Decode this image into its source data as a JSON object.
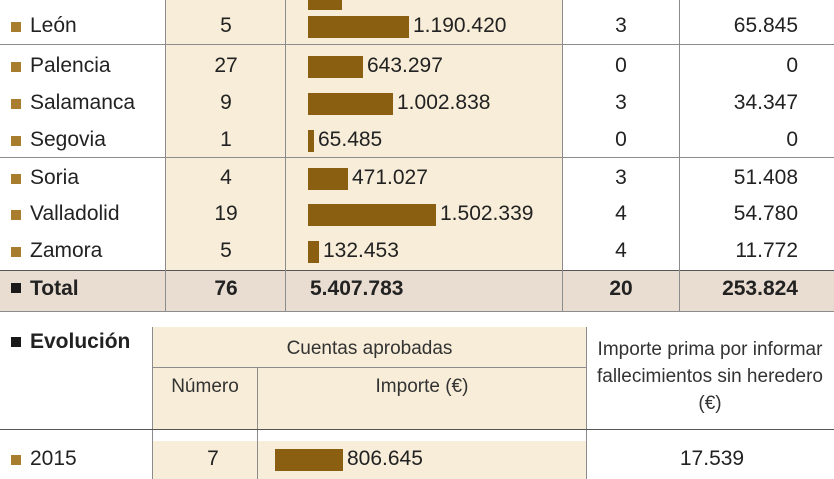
{
  "provinces": [
    {
      "name": "León",
      "numero": "5",
      "importe": "1.190.420",
      "importe_value": 1190420,
      "fallecidos": "3",
      "prima": "65.845"
    },
    {
      "name": "Palencia",
      "numero": "27",
      "importe": "643.297",
      "importe_value": 643297,
      "fallecidos": "0",
      "prima": "0"
    },
    {
      "name": "Salamanca",
      "numero": "9",
      "importe": "1.002.838",
      "importe_value": 1002838,
      "fallecidos": "3",
      "prima": "34.347"
    },
    {
      "name": "Segovia",
      "numero": "1",
      "importe": "65.485",
      "importe_value": 65485,
      "fallecidos": "0",
      "prima": "0"
    },
    {
      "name": "Soria",
      "numero": "4",
      "importe": "471.027",
      "importe_value": 471027,
      "fallecidos": "3",
      "prima": "51.408"
    },
    {
      "name": "Valladolid",
      "numero": "19",
      "importe": "1.502.339",
      "importe_value": 1502339,
      "fallecidos": "4",
      "prima": "54.780"
    },
    {
      "name": "Zamora",
      "numero": "5",
      "importe": "132.453",
      "importe_value": 132453,
      "fallecidos": "4",
      "prima": "11.772"
    }
  ],
  "total": {
    "label": "Total",
    "numero": "76",
    "importe": "5.407.783",
    "fallecidos": "20",
    "prima": "253.824"
  },
  "evolucion": {
    "title": "Evolución",
    "header_group": "Cuentas aprobadas",
    "col_numero": "Número",
    "col_importe": "Importe (€)",
    "col_prima": "Importe prima por informar fallecimientos sin heredero (€)",
    "rows": [
      {
        "year": "2015",
        "numero": "7",
        "importe": "806.645",
        "importe_value": 806645,
        "prima": "17.539"
      }
    ]
  },
  "colors": {
    "bar": "#8a5f12",
    "bullet": "#a87d2e",
    "band": "#f7edd8",
    "total_band": "#e8ddd0"
  }
}
